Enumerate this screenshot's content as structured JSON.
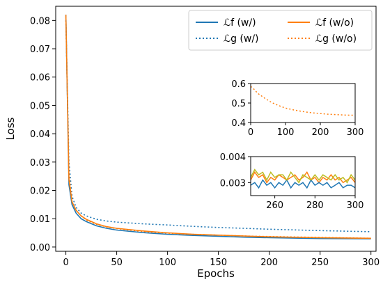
{
  "chart_data": {
    "type": "line",
    "xlabel": "Epochs",
    "ylabel": "Loss",
    "xlim": [
      -10,
      305
    ],
    "ylim": [
      -0.0015,
      0.085
    ],
    "x_ticks": [
      0,
      50,
      100,
      150,
      200,
      250,
      300
    ],
    "y_ticks": [
      0.0,
      0.01,
      0.02,
      0.03,
      0.04,
      0.05,
      0.06,
      0.07,
      0.08
    ],
    "y_tick_labels": [
      "0.00",
      "0.01",
      "0.02",
      "0.03",
      "0.04",
      "0.05",
      "0.06",
      "0.07",
      "0.08"
    ],
    "legend_position": "top-right",
    "series": [
      {
        "name": "𝓛f (w/)",
        "display_name": "ℒf (w/)",
        "color": "#1f77b4",
        "style": "solid",
        "x": [
          0,
          3,
          6,
          10,
          15,
          20,
          30,
          40,
          50,
          75,
          100,
          125,
          150,
          175,
          200,
          250,
          300
        ],
        "values": [
          0.082,
          0.022,
          0.015,
          0.012,
          0.01,
          0.009,
          0.0075,
          0.0066,
          0.006,
          0.0051,
          0.0045,
          0.0041,
          0.0038,
          0.0035,
          0.0033,
          0.003,
          0.0029
        ]
      },
      {
        "name": "𝓛f (w/o)",
        "display_name": "ℒf (w/o)",
        "color": "#ff7f0e",
        "style": "solid",
        "x": [
          0,
          3,
          6,
          10,
          15,
          20,
          30,
          40,
          50,
          75,
          100,
          125,
          150,
          175,
          200,
          250,
          300
        ],
        "values": [
          0.082,
          0.024,
          0.016,
          0.013,
          0.011,
          0.0098,
          0.0082,
          0.0072,
          0.0066,
          0.0057,
          0.005,
          0.0045,
          0.0042,
          0.0039,
          0.0036,
          0.0033,
          0.0031
        ]
      },
      {
        "name": "𝓛g (w/)",
        "display_name": "ℒg (w/)",
        "color": "#1f77b4",
        "style": "dotted",
        "x": [
          0,
          3,
          6,
          10,
          15,
          20,
          30,
          40,
          50,
          75,
          100,
          125,
          150,
          175,
          200,
          250,
          300
        ],
        "values": [
          0.08,
          0.03,
          0.018,
          0.014,
          0.012,
          0.011,
          0.0098,
          0.0092,
          0.0088,
          0.0082,
          0.0078,
          0.0073,
          0.0069,
          0.0066,
          0.0063,
          0.0058,
          0.0054
        ]
      },
      {
        "name": "𝓛g (w/o)",
        "display_name": "ℒg (w/o)",
        "color": "#ff7f0e",
        "style": "dotted",
        "x": [
          0,
          3,
          6,
          10,
          15,
          20,
          30,
          40,
          50,
          75,
          100,
          125,
          150,
          175,
          200,
          250,
          300
        ],
        "values": [
          0.08,
          0.026,
          0.016,
          0.013,
          0.011,
          0.0095,
          0.008,
          0.0071,
          0.0065,
          0.0055,
          0.0049,
          0.0045,
          0.0042,
          0.0039,
          0.0037,
          0.0034,
          0.0031
        ]
      }
    ],
    "insets": [
      {
        "xlim": [
          0,
          300
        ],
        "ylim": [
          0.4,
          0.6
        ],
        "x_ticks": [
          0,
          100,
          200,
          300
        ],
        "y_ticks": [
          0.4,
          0.5,
          0.6
        ],
        "y_tick_labels": [
          "0.4",
          "0.5",
          "0.6"
        ],
        "series": [
          {
            "name": "𝓛g (w/o)",
            "color": "#ff7f0e",
            "style": "dotted",
            "x": [
              0,
              10,
              20,
              40,
              60,
              80,
              100,
              125,
              150,
              175,
              200,
              225,
              250,
              275,
              300
            ],
            "values": [
              0.585,
              0.57,
              0.55,
              0.525,
              0.503,
              0.487,
              0.474,
              0.464,
              0.456,
              0.45,
              0.446,
              0.442,
              0.44,
              0.438,
              0.437
            ]
          }
        ]
      },
      {
        "xlim": [
          248,
          300
        ],
        "ylim": [
          0.0025,
          0.004
        ],
        "x_ticks": [
          260,
          280,
          300
        ],
        "y_ticks": [
          0.003,
          0.004
        ],
        "y_tick_labels": [
          "0.003",
          "0.004"
        ],
        "series": [
          {
            "name": "𝓛f (w/o)",
            "color": "#ff7f0e",
            "style": "solid",
            "x": [
              248,
              250,
              252,
              254,
              256,
              258,
              260,
              262,
              264,
              266,
              268,
              270,
              272,
              274,
              276,
              278,
              280,
              282,
              284,
              286,
              288,
              290,
              292,
              294,
              296,
              298,
              300
            ],
            "values": [
              0.0031,
              0.0034,
              0.0032,
              0.0033,
              0.003,
              0.0032,
              0.0031,
              0.0033,
              0.0032,
              0.0031,
              0.0032,
              0.0033,
              0.0031,
              0.0032,
              0.0034,
              0.0031,
              0.0032,
              0.003,
              0.0032,
              0.0031,
              0.0033,
              0.0031,
              0.0032,
              0.003,
              0.0031,
              0.0032,
              0.003
            ]
          },
          {
            "name": "𝓛f (w/)",
            "color": "#1f77b4",
            "style": "solid",
            "x": [
              248,
              250,
              252,
              254,
              256,
              258,
              260,
              262,
              264,
              266,
              268,
              270,
              272,
              274,
              276,
              278,
              280,
              282,
              284,
              286,
              288,
              290,
              292,
              294,
              296,
              298,
              300
            ],
            "values": [
              0.0029,
              0.003,
              0.0028,
              0.0031,
              0.0029,
              0.003,
              0.0028,
              0.003,
              0.0029,
              0.0031,
              0.0028,
              0.003,
              0.0029,
              0.003,
              0.0028,
              0.0031,
              0.0029,
              0.003,
              0.0029,
              0.003,
              0.0028,
              0.0029,
              0.003,
              0.0028,
              0.0029,
              0.0029,
              0.0028
            ]
          },
          {
            "name": "𝓛f (w/)",
            "color": "#bcbd22",
            "style": "solid",
            "x": [
              248,
              250,
              252,
              254,
              256,
              258,
              260,
              262,
              264,
              266,
              268,
              270,
              272,
              274,
              276,
              278,
              280,
              282,
              284,
              286,
              288,
              290,
              292,
              294,
              296,
              298,
              300
            ],
            "values": [
              0.0032,
              0.0035,
              0.0033,
              0.0034,
              0.0031,
              0.0034,
              0.0032,
              0.0033,
              0.0033,
              0.0031,
              0.0034,
              0.0032,
              0.003,
              0.0033,
              0.0032,
              0.0031,
              0.0033,
              0.0031,
              0.0033,
              0.0032,
              0.0031,
              0.0033,
              0.0031,
              0.0032,
              0.003,
              0.0033,
              0.0031
            ]
          }
        ]
      }
    ]
  }
}
